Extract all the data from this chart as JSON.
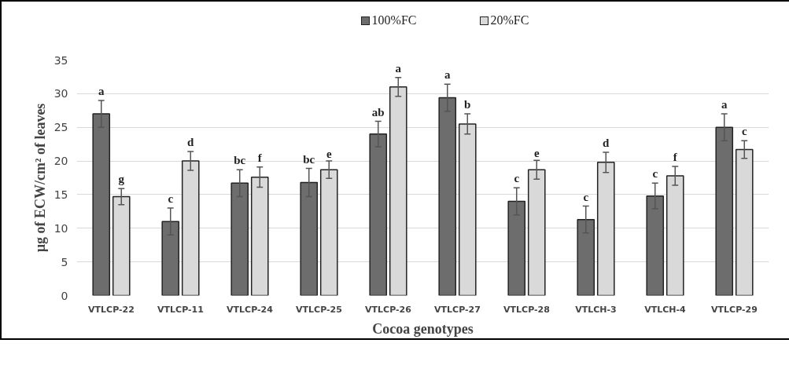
{
  "chart_data": {
    "type": "bar",
    "xlabel": "Cocoa genotypes",
    "ylabel": "µg of ECW/cm² of leaves",
    "categories": [
      "VTLCP-22",
      "VTLCP-11",
      "VTLCP-24",
      "VTLCP-25",
      "VTLCP-26",
      "VTLCP-27",
      "VTLCP-28",
      "VTLCH-3",
      "VTLCH-4",
      "VTLCP-29"
    ],
    "series": [
      {
        "name": "100%FC",
        "color": "#6d6d6d",
        "values": [
          27,
          11,
          16.7,
          16.8,
          24,
          29.4,
          14,
          11.3,
          14.8,
          25
        ],
        "errors": [
          2,
          2,
          2,
          2.1,
          1.9,
          2,
          2,
          2,
          1.9,
          2
        ],
        "value_labels": [
          "a",
          "c",
          "bc",
          "bc",
          "ab",
          "a",
          "c",
          "c",
          "c",
          "a"
        ]
      },
      {
        "name": "20%FC",
        "color": "#d9d9d9",
        "values": [
          14.7,
          20,
          17.6,
          18.7,
          31,
          25.5,
          18.7,
          19.8,
          17.8,
          21.7
        ],
        "errors": [
          1.2,
          1.4,
          1.5,
          1.3,
          1.4,
          1.5,
          1.4,
          1.5,
          1.4,
          1.3
        ],
        "value_labels": [
          "g",
          "d",
          "f",
          "e",
          "a",
          "b",
          "e",
          "d",
          "f",
          "c"
        ]
      }
    ],
    "ylim": [
      0,
      35
    ],
    "yticks": [
      0,
      5,
      10,
      15,
      20,
      25,
      30,
      35
    ],
    "grid": "y",
    "legend": "top"
  }
}
